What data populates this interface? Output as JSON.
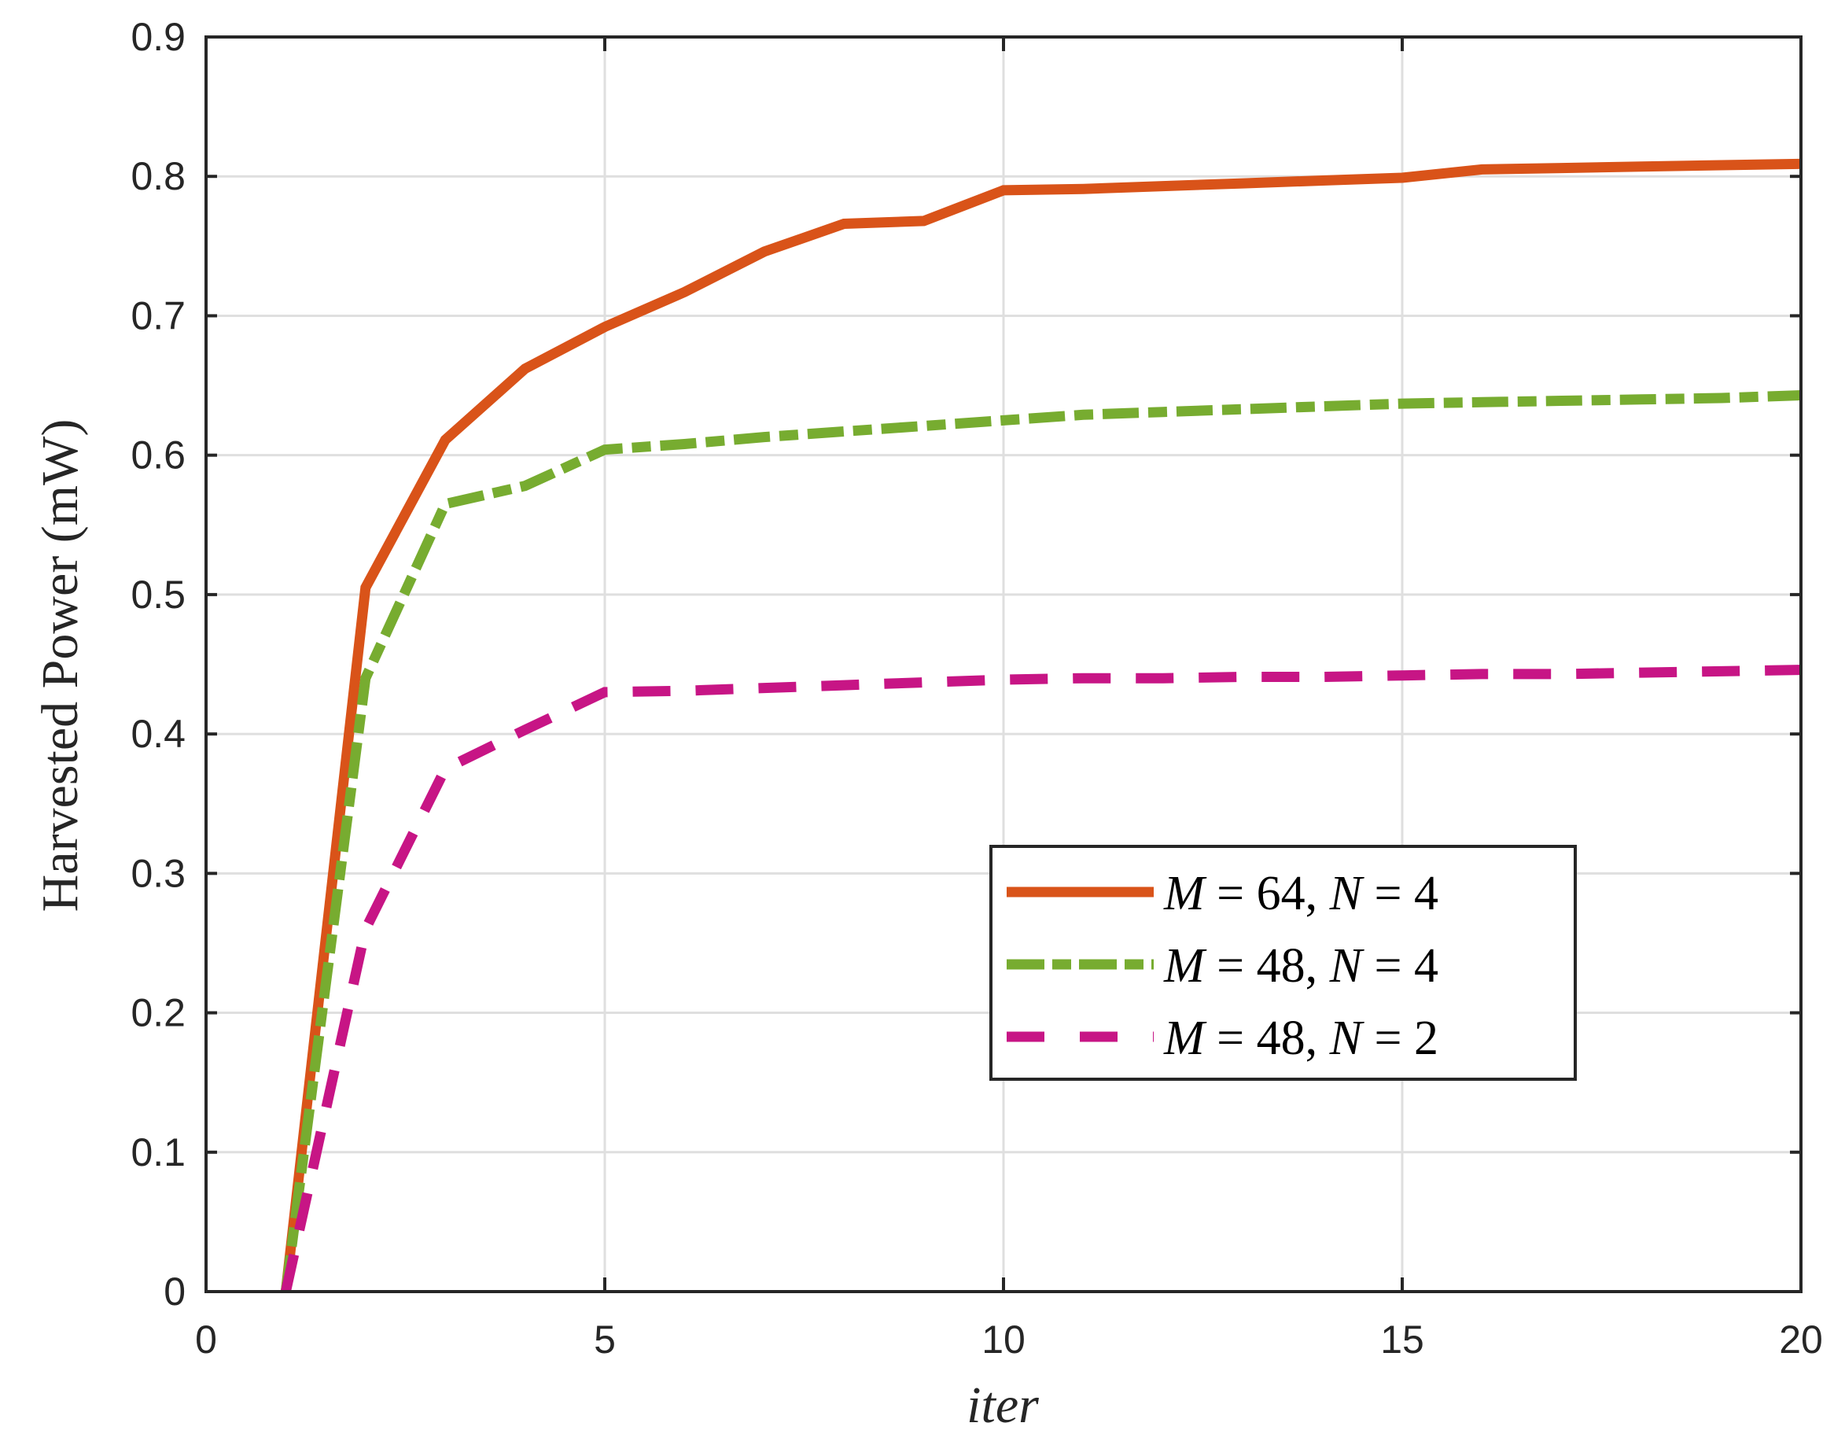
{
  "chart_data": {
    "type": "line",
    "title": "",
    "xlabel": "iter",
    "ylabel": "Harvested Power (mW)",
    "xlim": [
      0,
      20
    ],
    "ylim": [
      0,
      0.9
    ],
    "xticks": [
      0,
      5,
      10,
      15,
      20
    ],
    "xtick_labels": [
      "0",
      "5",
      "10",
      "15",
      "20"
    ],
    "yticks": [
      0,
      0.1,
      0.2,
      0.3,
      0.4,
      0.5,
      0.6,
      0.7,
      0.8,
      0.9
    ],
    "ytick_labels": [
      "0",
      "0.1",
      "0.2",
      "0.3",
      "0.4",
      "0.5",
      "0.6",
      "0.7",
      "0.8",
      "0.9"
    ],
    "grid": true,
    "legend_position": "lower right (inside, center-right)",
    "x": [
      1,
      2,
      3,
      4,
      5,
      6,
      7,
      8,
      9,
      10,
      11,
      12,
      13,
      14,
      15,
      16,
      17,
      18,
      19,
      20
    ],
    "series": [
      {
        "name": "M = 64, N = 4",
        "color": "#D95319",
        "style": "solid",
        "values": [
          0,
          0.505,
          0.611,
          0.662,
          0.692,
          0.717,
          0.746,
          0.766,
          0.768,
          0.79,
          0.791,
          0.793,
          0.795,
          0.797,
          0.799,
          0.805,
          0.806,
          0.807,
          0.808,
          0.809
        ]
      },
      {
        "name": "M = 48, N = 4",
        "color": "#77AC30",
        "style": "dash-dot",
        "values": [
          0,
          0.44,
          0.565,
          0.578,
          0.604,
          0.608,
          0.613,
          0.617,
          0.621,
          0.625,
          0.629,
          0.631,
          0.633,
          0.635,
          0.637,
          0.638,
          0.639,
          0.64,
          0.641,
          0.643
        ]
      },
      {
        "name": "M = 48, N = 2",
        "color": "#C71585",
        "style": "dashed",
        "values": [
          0,
          0.26,
          0.375,
          0.403,
          0.43,
          0.431,
          0.433,
          0.435,
          0.437,
          0.439,
          0.44,
          0.44,
          0.441,
          0.441,
          0.442,
          0.443,
          0.443,
          0.444,
          0.445,
          0.446
        ]
      }
    ]
  },
  "legend": {
    "items": [
      {
        "m_var": "M",
        "m_val": "64",
        "n_var": "N",
        "n_val": "4"
      },
      {
        "m_var": "M",
        "m_val": "48",
        "n_var": "N",
        "n_val": "4"
      },
      {
        "m_var": "M",
        "m_val": "48",
        "n_var": "N",
        "n_val": "2"
      }
    ]
  },
  "colors": {
    "axis": "#262626",
    "grid": "#DFDFDF"
  }
}
